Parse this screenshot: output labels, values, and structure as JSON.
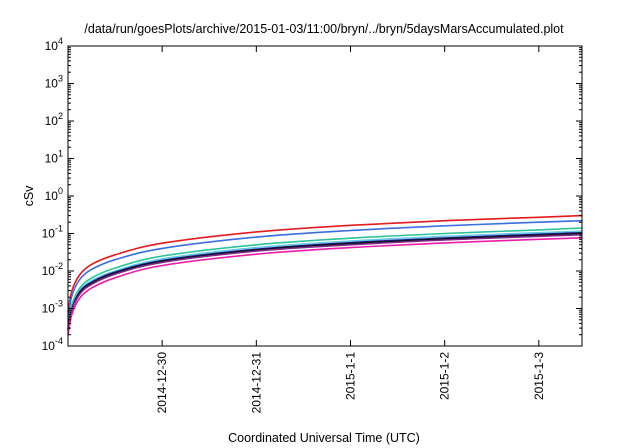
{
  "chart_data": {
    "type": "line",
    "title": "/data/run/goesPlots/archive/2015-01-03/11:00/bryn/../bryn/5daysMarsAccumulated.plot",
    "xlabel": "Coordinated Universal Time (UTC)",
    "ylabel": "cSv",
    "yscale": "log",
    "ylim": [
      0.0001,
      10000
    ],
    "yticks": [
      {
        "base": "10",
        "exp": "-4"
      },
      {
        "base": "10",
        "exp": "-3"
      },
      {
        "base": "10",
        "exp": "-2"
      },
      {
        "base": "10",
        "exp": "-1"
      },
      {
        "base": "10",
        "exp": "0"
      },
      {
        "base": "10",
        "exp": "1"
      },
      {
        "base": "10",
        "exp": "2"
      },
      {
        "base": "10",
        "exp": "3"
      },
      {
        "base": "10",
        "exp": "4"
      }
    ],
    "xlim": [
      "2014-12-29T00:00",
      "2015-01-03T11:00"
    ],
    "xticks": [
      {
        "label": "2014-12-30",
        "x": "2014-12-30T00:00"
      },
      {
        "label": "2014-12-31",
        "x": "2014-12-31T00:00"
      },
      {
        "label": "2015-1-1",
        "x": "2015-01-01T00:00"
      },
      {
        "label": "2015-1-2",
        "x": "2015-01-02T00:00"
      },
      {
        "label": "2015-1-3",
        "x": "2015-01-03T00:00"
      }
    ],
    "grid": false,
    "legend": "none",
    "series": [
      {
        "color": "#e41a1c",
        "points": [
          [
            "2014-12-29T00:00",
            0.0008
          ],
          [
            "2014-12-29T01:00",
            0.003
          ],
          [
            "2014-12-29T03:00",
            0.008
          ],
          [
            "2014-12-29T06:00",
            0.015
          ],
          [
            "2014-12-29T12:00",
            0.027
          ],
          [
            "2014-12-30T00:00",
            0.055
          ],
          [
            "2014-12-31T00:00",
            0.11
          ],
          [
            "2015-01-01T00:00",
            0.165
          ],
          [
            "2015-01-02T00:00",
            0.22
          ],
          [
            "2015-01-03T00:00",
            0.27
          ],
          [
            "2015-01-03T11:00",
            0.3
          ]
        ]
      },
      {
        "color": "#3a6de0",
        "points": [
          [
            "2014-12-29T00:00",
            0.0006
          ],
          [
            "2014-12-29T01:00",
            0.0022
          ],
          [
            "2014-12-29T03:00",
            0.006
          ],
          [
            "2014-12-29T06:00",
            0.011
          ],
          [
            "2014-12-29T12:00",
            0.02
          ],
          [
            "2014-12-30T00:00",
            0.04
          ],
          [
            "2014-12-31T00:00",
            0.08
          ],
          [
            "2015-01-01T00:00",
            0.12
          ],
          [
            "2015-01-02T00:00",
            0.16
          ],
          [
            "2015-01-03T00:00",
            0.2
          ],
          [
            "2015-01-03T11:00",
            0.22
          ]
        ]
      },
      {
        "color": "#2bc49a",
        "points": [
          [
            "2014-12-29T00:00",
            0.0004
          ],
          [
            "2014-12-29T01:00",
            0.0013
          ],
          [
            "2014-12-29T03:00",
            0.0035
          ],
          [
            "2014-12-29T06:00",
            0.0065
          ],
          [
            "2014-12-29T12:00",
            0.012
          ],
          [
            "2014-12-30T00:00",
            0.025
          ],
          [
            "2014-12-31T00:00",
            0.05
          ],
          [
            "2015-01-01T00:00",
            0.075
          ],
          [
            "2015-01-02T00:00",
            0.1
          ],
          [
            "2015-01-03T00:00",
            0.125
          ],
          [
            "2015-01-03T11:00",
            0.14
          ]
        ]
      },
      {
        "color": "#66c9e8",
        "points": [
          [
            "2014-12-29T00:00",
            0.00035
          ],
          [
            "2014-12-29T01:00",
            0.0011
          ],
          [
            "2014-12-29T03:00",
            0.003
          ],
          [
            "2014-12-29T06:00",
            0.0055
          ],
          [
            "2014-12-29T12:00",
            0.01
          ],
          [
            "2014-12-30T00:00",
            0.021
          ],
          [
            "2014-12-31T00:00",
            0.042
          ],
          [
            "2015-01-01T00:00",
            0.063
          ],
          [
            "2015-01-02T00:00",
            0.084
          ],
          [
            "2015-01-03T00:00",
            0.105
          ],
          [
            "2015-01-03T11:00",
            0.115
          ]
        ]
      },
      {
        "color": "#1a1a8c",
        "points": [
          [
            "2014-12-29T00:00",
            0.0003
          ],
          [
            "2014-12-29T01:00",
            0.001
          ],
          [
            "2014-12-29T03:00",
            0.0028
          ],
          [
            "2014-12-29T06:00",
            0.005
          ],
          [
            "2014-12-29T12:00",
            0.0093
          ],
          [
            "2014-12-30T00:00",
            0.019
          ],
          [
            "2014-12-31T00:00",
            0.038
          ],
          [
            "2015-01-01T00:00",
            0.057
          ],
          [
            "2015-01-02T00:00",
            0.076
          ],
          [
            "2015-01-03T00:00",
            0.095
          ],
          [
            "2015-01-03T11:00",
            0.105
          ]
        ]
      },
      {
        "color": "#111111",
        "points": [
          [
            "2014-12-29T00:00",
            0.00028
          ],
          [
            "2014-12-29T01:00",
            0.00095
          ],
          [
            "2014-12-29T03:00",
            0.0026
          ],
          [
            "2014-12-29T06:00",
            0.0047
          ],
          [
            "2014-12-29T12:00",
            0.0088
          ],
          [
            "2014-12-30T00:00",
            0.018
          ],
          [
            "2014-12-31T00:00",
            0.036
          ],
          [
            "2015-01-01T00:00",
            0.054
          ],
          [
            "2015-01-02T00:00",
            0.072
          ],
          [
            "2015-01-03T00:00",
            0.09
          ],
          [
            "2015-01-03T11:00",
            0.1
          ]
        ]
      },
      {
        "color": "#7a2a8a",
        "points": [
          [
            "2014-12-29T00:00",
            0.00026
          ],
          [
            "2014-12-29T01:00",
            0.0009
          ],
          [
            "2014-12-29T03:00",
            0.0024
          ],
          [
            "2014-12-29T06:00",
            0.0044
          ],
          [
            "2014-12-29T12:00",
            0.0082
          ],
          [
            "2014-12-30T00:00",
            0.017
          ],
          [
            "2014-12-31T00:00",
            0.034
          ],
          [
            "2015-01-01T00:00",
            0.05
          ],
          [
            "2015-01-02T00:00",
            0.067
          ],
          [
            "2015-01-03T00:00",
            0.084
          ],
          [
            "2015-01-03T11:00",
            0.093
          ]
        ]
      },
      {
        "color": "#ee1ca8",
        "points": [
          [
            "2014-12-29T00:00",
            0.0002
          ],
          [
            "2014-12-29T01:00",
            0.0007
          ],
          [
            "2014-12-29T03:00",
            0.0019
          ],
          [
            "2014-12-29T06:00",
            0.0035
          ],
          [
            "2014-12-29T12:00",
            0.0066
          ],
          [
            "2014-12-30T00:00",
            0.014
          ],
          [
            "2014-12-31T00:00",
            0.028
          ],
          [
            "2015-01-01T00:00",
            0.042
          ],
          [
            "2015-01-02T00:00",
            0.056
          ],
          [
            "2015-01-03T00:00",
            0.07
          ],
          [
            "2015-01-03T11:00",
            0.077
          ]
        ]
      }
    ]
  }
}
